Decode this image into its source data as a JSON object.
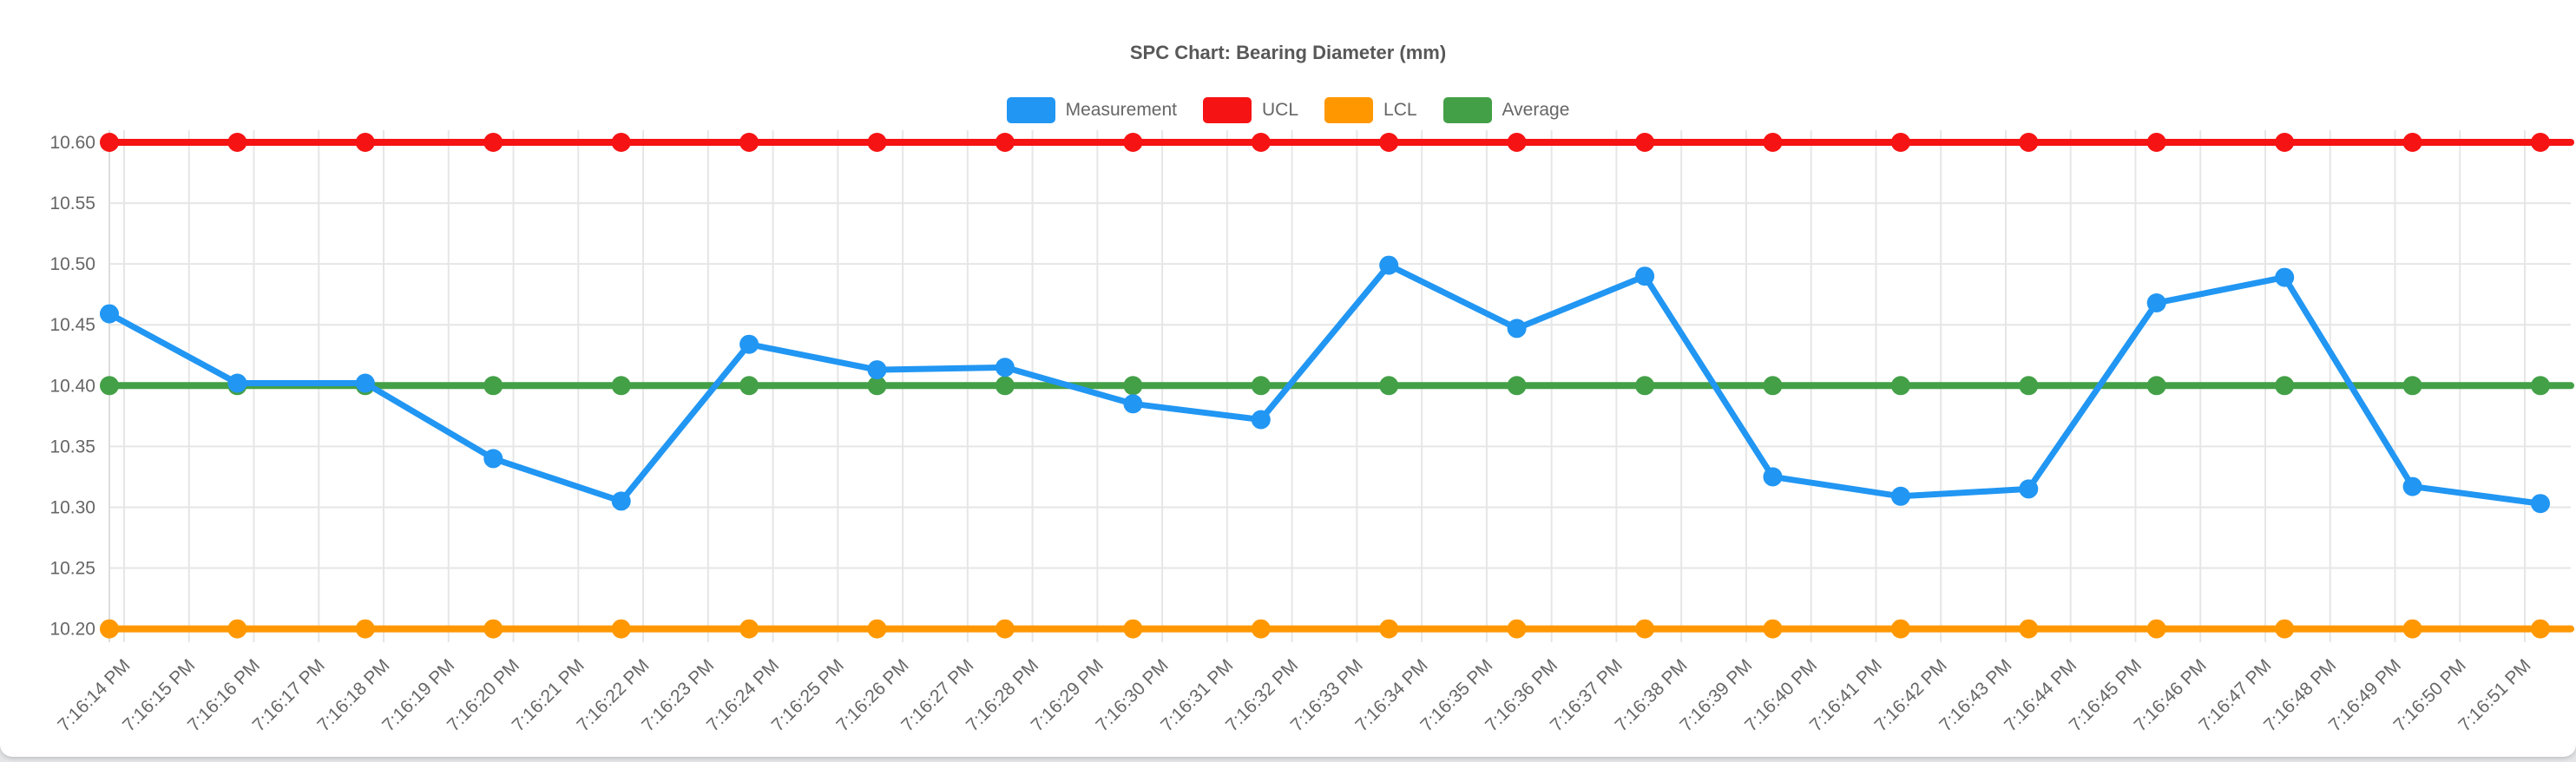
{
  "chart_data": {
    "type": "line",
    "title": "SPC Chart: Bearing Diameter (mm)",
    "legend_position": "top",
    "grid": true,
    "x_axis": {
      "tick_labels": [
        "7:16:14 PM",
        "7:16:15 PM",
        "7:16:16 PM",
        "7:16:17 PM",
        "7:16:18 PM",
        "7:16:19 PM",
        "7:16:20 PM",
        "7:16:21 PM",
        "7:16:22 PM",
        "7:16:23 PM",
        "7:16:24 PM",
        "7:16:25 PM",
        "7:16:26 PM",
        "7:16:27 PM",
        "7:16:28 PM",
        "7:16:29 PM",
        "7:16:30 PM",
        "7:16:31 PM",
        "7:16:32 PM",
        "7:16:33 PM",
        "7:16:34 PM",
        "7:16:35 PM",
        "7:16:36 PM",
        "7:16:37 PM",
        "7:16:38 PM",
        "7:16:39 PM",
        "7:16:40 PM",
        "7:16:41 PM",
        "7:16:42 PM",
        "7:16:43 PM",
        "7:16:44 PM",
        "7:16:45 PM",
        "7:16:46 PM",
        "7:16:47 PM",
        "7:16:48 PM",
        "7:16:49 PM",
        "7:16:50 PM",
        "7:16:51 PM"
      ]
    },
    "y_axis": {
      "tick_labels": [
        "10.60",
        "10.55",
        "10.50",
        "10.45",
        "10.40",
        "10.35",
        "10.30",
        "10.25",
        "10.20"
      ],
      "range": [
        10.189,
        10.61
      ]
    },
    "series": [
      {
        "name": "Measurement",
        "color": "#2196F3",
        "values": [
          10.459,
          10.402,
          10.402,
          10.34,
          10.305,
          10.434,
          10.413,
          10.415,
          10.385,
          10.372,
          10.499,
          10.447,
          10.49,
          10.325,
          10.309,
          10.315,
          10.468,
          10.489,
          10.317,
          10.303
        ],
        "extend_right": false
      },
      {
        "name": "UCL",
        "color": "#F61313",
        "constant": 10.6,
        "extend_right": true
      },
      {
        "name": "LCL",
        "color": "#FF9800",
        "constant": 10.2,
        "extend_right": true
      },
      {
        "name": "Average",
        "color": "#43A047",
        "constant": 10.4,
        "extend_right": true
      }
    ],
    "colors": {
      "grid": "#e6e6e6",
      "axis_border": "#dddddd",
      "tick_text": "#666666",
      "title_text": "#585858",
      "card_background": "#ffffff",
      "page_background": "#e4e5e7"
    }
  }
}
